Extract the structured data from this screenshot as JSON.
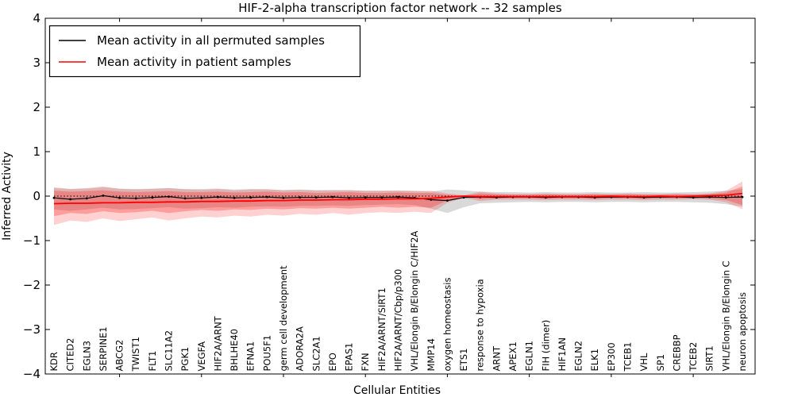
{
  "chart_data": {
    "type": "line",
    "title": "HIF-2-alpha transcription factor network -- 32 samples",
    "xlabel": "Cellular Entities",
    "ylabel": "Inferred Activity",
    "ylim": [
      -4,
      4
    ],
    "grid": false,
    "legend_position": "upper left",
    "yticks": [
      {
        "value": 4,
        "label": "4"
      },
      {
        "value": 3,
        "label": "3"
      },
      {
        "value": 2,
        "label": "2"
      },
      {
        "value": 1,
        "label": "1"
      },
      {
        "value": 0,
        "label": "0"
      },
      {
        "value": -1,
        "label": "−1"
      },
      {
        "value": -2,
        "label": "−2"
      },
      {
        "value": -3,
        "label": "−3"
      },
      {
        "value": -4,
        "label": "−4"
      }
    ],
    "top_tick_indices": [
      4,
      9,
      14,
      19,
      24,
      29,
      34,
      39
    ],
    "categories": [
      "KDR",
      "CITED2",
      "EGLN3",
      "SERPINE1",
      "ABCG2",
      "TWIST1",
      "FLT1",
      "SLC11A2",
      "PGK1",
      "VEGFA",
      "HIF2A/ARNT",
      "BHLHE40",
      "EFNA1",
      "POU5F1",
      "germ cell development",
      "ADORA2A",
      "SLC2A1",
      "EPO",
      "EPAS1",
      "FXN",
      "HIF2A/ARNT/SIRT1",
      "HIF2A/ARNT/Cbp/p300",
      "VHL/Elongin B/Elongin C/HIF2A",
      "MMP14",
      "oxygen homeostasis",
      "ETS1",
      "response to hypoxia",
      "ARNT",
      "APEX1",
      "EGLN1",
      "FIH (dimer)",
      "HIF1AN",
      "EGLN2",
      "ELK1",
      "EP300",
      "TCEB1",
      "VHL",
      "SP1",
      "CREBBP",
      "TCEB2",
      "SIRT1",
      "VHL/Elongin B/Elongin C",
      "neuron apoptosis"
    ],
    "series": [
      {
        "name": "Mean activity in all permuted samples",
        "color": "#000000",
        "marker": "point",
        "values": [
          -0.04,
          -0.07,
          -0.05,
          0.01,
          -0.04,
          -0.05,
          -0.03,
          -0.01,
          -0.05,
          -0.04,
          -0.02,
          -0.04,
          -0.03,
          -0.02,
          -0.04,
          -0.03,
          -0.03,
          -0.02,
          -0.04,
          -0.03,
          -0.03,
          -0.02,
          -0.04,
          -0.08,
          -0.1,
          -0.03,
          -0.02,
          -0.03,
          -0.02,
          -0.02,
          -0.03,
          -0.02,
          -0.02,
          -0.03,
          -0.02,
          -0.02,
          -0.03,
          -0.02,
          -0.02,
          -0.03,
          -0.02,
          -0.03,
          -0.02
        ],
        "band_upper": [
          0.18,
          0.16,
          0.17,
          0.2,
          0.17,
          0.16,
          0.17,
          0.18,
          0.16,
          0.16,
          0.17,
          0.15,
          0.16,
          0.15,
          0.14,
          0.15,
          0.14,
          0.14,
          0.13,
          0.13,
          0.12,
          0.12,
          0.12,
          0.1,
          0.15,
          0.13,
          0.1,
          0.09,
          0.09,
          0.08,
          0.09,
          0.08,
          0.08,
          0.09,
          0.08,
          0.08,
          0.09,
          0.08,
          0.08,
          0.09,
          0.1,
          0.12,
          0.16
        ],
        "band_lower": [
          -0.3,
          -0.33,
          -0.3,
          -0.26,
          -0.3,
          -0.29,
          -0.27,
          -0.25,
          -0.28,
          -0.27,
          -0.25,
          -0.26,
          -0.24,
          -0.23,
          -0.24,
          -0.22,
          -0.22,
          -0.21,
          -0.22,
          -0.2,
          -0.19,
          -0.18,
          -0.2,
          -0.28,
          -0.38,
          -0.25,
          -0.16,
          -0.15,
          -0.14,
          -0.13,
          -0.14,
          -0.13,
          -0.13,
          -0.14,
          -0.13,
          -0.13,
          -0.14,
          -0.13,
          -0.13,
          -0.14,
          -0.15,
          -0.18,
          -0.24
        ]
      },
      {
        "name": "Mean activity in patient samples",
        "color": "#ff0000",
        "marker": "none",
        "values": [
          -0.17,
          -0.16,
          -0.16,
          -0.15,
          -0.15,
          -0.14,
          -0.14,
          -0.13,
          -0.13,
          -0.12,
          -0.12,
          -0.11,
          -0.11,
          -0.1,
          -0.1,
          -0.09,
          -0.09,
          -0.08,
          -0.08,
          -0.07,
          -0.07,
          -0.06,
          -0.06,
          -0.05,
          -0.02,
          0.0,
          -0.01,
          -0.01,
          -0.01,
          -0.01,
          -0.01,
          -0.01,
          -0.01,
          -0.01,
          0.0,
          -0.01,
          -0.01,
          0.0,
          -0.01,
          0.0,
          0.01,
          0.02,
          0.06
        ],
        "band_outer_upper": [
          0.2,
          0.16,
          0.18,
          0.22,
          0.16,
          0.15,
          0.16,
          0.18,
          0.15,
          0.14,
          0.16,
          0.13,
          0.15,
          0.16,
          0.13,
          0.14,
          0.12,
          0.13,
          0.14,
          0.11,
          0.12,
          0.13,
          0.11,
          0.12,
          0.06,
          0.02,
          0.1,
          0.06,
          0.05,
          0.05,
          0.06,
          0.05,
          0.05,
          0.06,
          0.05,
          0.06,
          0.05,
          0.05,
          0.06,
          0.05,
          0.06,
          0.12,
          0.33
        ],
        "band_outer_lower": [
          -0.65,
          -0.55,
          -0.58,
          -0.5,
          -0.56,
          -0.52,
          -0.48,
          -0.55,
          -0.5,
          -0.46,
          -0.48,
          -0.44,
          -0.46,
          -0.42,
          -0.44,
          -0.4,
          -0.42,
          -0.38,
          -0.42,
          -0.38,
          -0.36,
          -0.38,
          -0.35,
          -0.38,
          -0.15,
          -0.04,
          -0.11,
          -0.08,
          -0.08,
          -0.08,
          -0.09,
          -0.08,
          -0.08,
          -0.09,
          -0.08,
          -0.08,
          -0.09,
          -0.08,
          -0.08,
          -0.07,
          -0.08,
          -0.14,
          -0.29
        ],
        "band_inner_upper": [
          0.12,
          0.1,
          0.11,
          0.13,
          0.1,
          0.09,
          0.1,
          0.11,
          0.09,
          0.09,
          0.1,
          0.08,
          0.09,
          0.1,
          0.08,
          0.09,
          0.07,
          0.08,
          0.09,
          0.07,
          0.07,
          0.08,
          0.07,
          0.07,
          0.03,
          0.01,
          0.06,
          0.04,
          0.03,
          0.03,
          0.04,
          0.03,
          0.03,
          0.04,
          0.03,
          0.04,
          0.03,
          0.03,
          0.04,
          0.03,
          0.04,
          0.08,
          0.22
        ],
        "band_inner_lower": [
          -0.45,
          -0.38,
          -0.4,
          -0.34,
          -0.38,
          -0.36,
          -0.33,
          -0.38,
          -0.34,
          -0.31,
          -0.33,
          -0.3,
          -0.31,
          -0.28,
          -0.3,
          -0.27,
          -0.28,
          -0.26,
          -0.28,
          -0.26,
          -0.24,
          -0.26,
          -0.24,
          -0.26,
          -0.1,
          -0.02,
          -0.07,
          -0.05,
          -0.05,
          -0.05,
          -0.06,
          -0.05,
          -0.05,
          -0.06,
          -0.05,
          -0.05,
          -0.06,
          -0.05,
          -0.05,
          -0.05,
          -0.06,
          -0.09,
          -0.2
        ]
      }
    ],
    "zero_reference_line": {
      "value": 0,
      "style": "dotted",
      "color": "#000000"
    }
  },
  "legend": {
    "entries": [
      {
        "label": "Mean activity in all permuted samples",
        "color": "#000000"
      },
      {
        "label": "Mean activity in patient samples",
        "color": "#ff0000"
      }
    ]
  }
}
